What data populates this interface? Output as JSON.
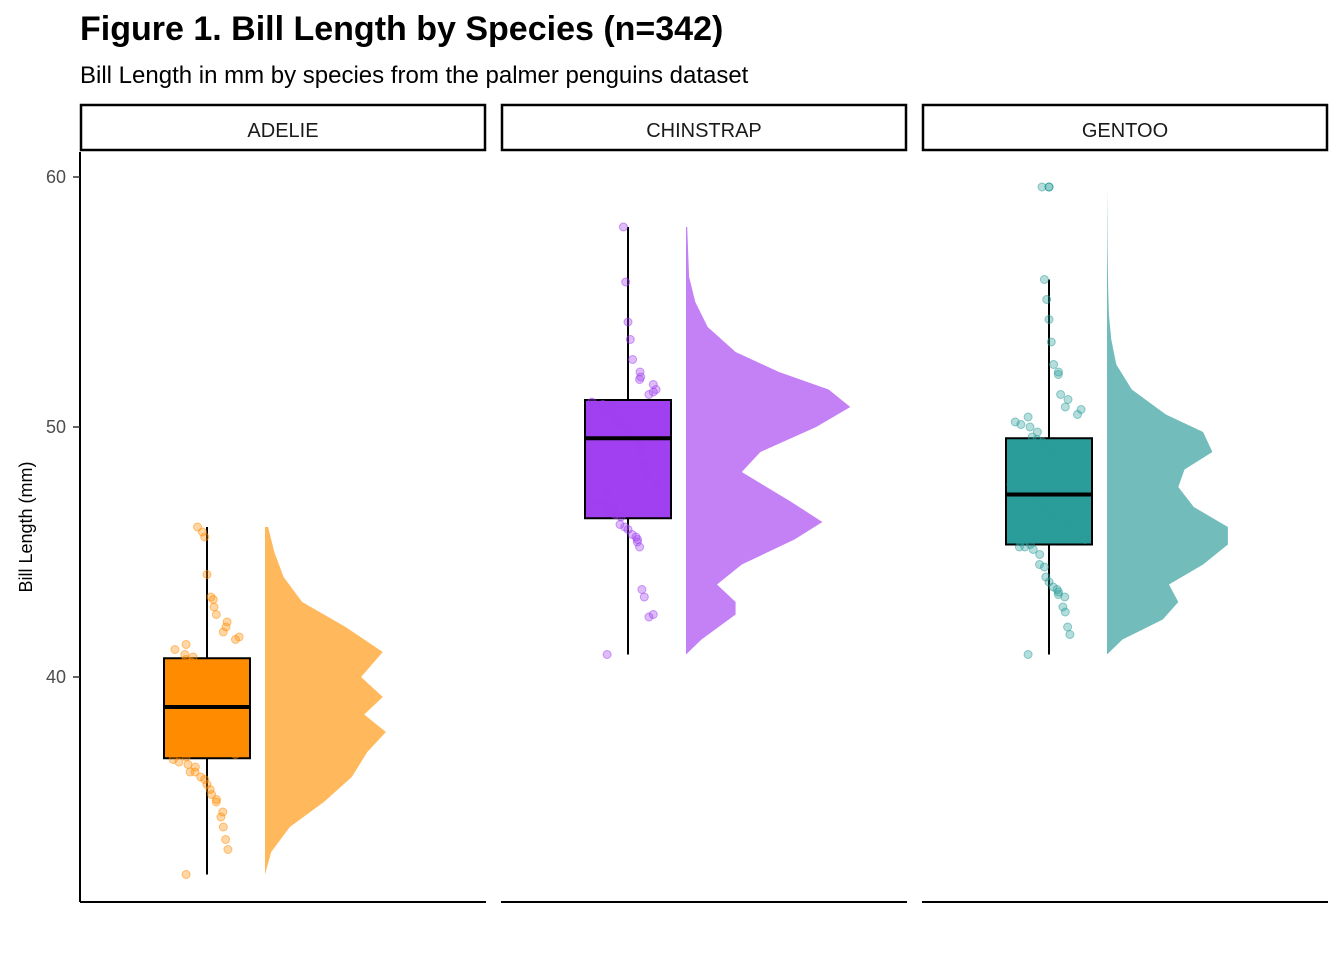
{
  "chart_data": {
    "type": "raincloud",
    "title": "Figure 1. Bill Length by Species (n=342)",
    "subtitle": "Bill Length in mm by species from the palmer penguins dataset",
    "ylabel": "Bill Length (mm)",
    "xlabel": "",
    "ylim": [
      31.0,
      61.0
    ],
    "yticks": [
      40,
      50,
      60
    ],
    "grid": false,
    "legend": "none",
    "panels": [
      {
        "name": "ADELIE",
        "color": "#ff8c00",
        "cloud_color": "#ffb95c",
        "box": {
          "min": 32.1,
          "q1": 36.75,
          "median": 38.8,
          "q3": 40.75,
          "max": 46.0
        },
        "outliers": [],
        "density": {
          "y": [
            32.1,
            33.0,
            34.0,
            35.0,
            36.0,
            37.0,
            37.8,
            38.5,
            39.2,
            40.0,
            41.0,
            42.0,
            43.0,
            44.0,
            45.0,
            46.0
          ],
          "d": [
            0.0,
            0.1,
            0.4,
            0.95,
            1.4,
            1.65,
            1.95,
            1.6,
            1.9,
            1.55,
            1.9,
            1.3,
            0.6,
            0.3,
            0.15,
            0.05
          ]
        },
        "points": [
          32.1,
          33.1,
          33.5,
          34.0,
          34.4,
          34.6,
          35.0,
          35.1,
          35.3,
          35.5,
          35.7,
          35.9,
          36.0,
          36.2,
          36.2,
          36.4,
          36.5,
          36.6,
          36.7,
          36.8,
          36.9,
          37.0,
          37.2,
          37.3,
          37.5,
          37.6,
          37.7,
          37.8,
          37.8,
          37.9,
          38.0,
          38.1,
          38.2,
          38.3,
          38.5,
          38.6,
          38.7,
          38.8,
          38.8,
          38.9,
          39.0,
          39.1,
          39.2,
          39.3,
          39.5,
          39.6,
          39.7,
          39.8,
          40.0,
          40.2,
          40.3,
          40.5,
          40.6,
          40.7,
          40.8,
          40.9,
          41.1,
          41.3,
          41.5,
          41.6,
          41.8,
          42.0,
          42.2,
          42.5,
          42.8,
          43.1,
          43.2,
          44.1,
          45.6,
          45.8,
          46.0
        ]
      },
      {
        "name": "CHINSTRAP",
        "color": "#a040f0",
        "cloud_color": "#c481f5",
        "box": {
          "min": 40.9,
          "q1": 46.35,
          "median": 49.55,
          "q3": 51.08,
          "max": 58.0
        },
        "outliers": [],
        "density": {
          "y": [
            40.9,
            41.5,
            42.5,
            43.0,
            43.7,
            44.5,
            45.5,
            46.2,
            47.0,
            48.2,
            49.0,
            50.0,
            50.8,
            51.5,
            52.2,
            53.0,
            54.0,
            55.0,
            56.0,
            58.0
          ],
          "d": [
            0.0,
            0.25,
            0.8,
            0.8,
            0.5,
            0.9,
            1.75,
            2.2,
            1.7,
            0.9,
            1.2,
            2.1,
            2.65,
            2.3,
            1.5,
            0.8,
            0.35,
            0.15,
            0.05,
            0.02
          ]
        },
        "points": [
          40.9,
          42.4,
          42.5,
          43.2,
          43.5,
          45.2,
          45.4,
          45.5,
          45.6,
          45.7,
          45.9,
          46.0,
          46.1,
          46.4,
          46.5,
          46.6,
          46.8,
          46.9,
          47.0,
          47.5,
          47.6,
          48.1,
          48.5,
          49.0,
          49.2,
          49.3,
          49.5,
          49.6,
          49.7,
          49.8,
          50.0,
          50.1,
          50.2,
          50.3,
          50.5,
          50.6,
          50.8,
          50.9,
          51.0,
          51.3,
          51.4,
          51.5,
          51.7,
          51.9,
          52.0,
          52.2,
          52.7,
          53.5,
          54.2,
          55.8,
          58.0
        ]
      },
      {
        "name": "GENTOO",
        "color": "#2a9d9a",
        "cloud_color": "#72bcbb",
        "box": {
          "min": 40.9,
          "q1": 45.3,
          "median": 47.3,
          "q3": 49.55,
          "max": 55.9
        },
        "outliers": [
          59.6
        ],
        "density": {
          "y": [
            40.9,
            41.5,
            42.3,
            43.0,
            43.7,
            44.5,
            45.3,
            46.0,
            46.8,
            47.6,
            48.3,
            49.0,
            49.8,
            50.5,
            51.5,
            52.5,
            53.5,
            54.5,
            55.5,
            57.0,
            59.6
          ],
          "d": [
            0.0,
            0.25,
            0.9,
            1.15,
            1.0,
            1.55,
            1.95,
            1.95,
            1.4,
            1.15,
            1.25,
            1.7,
            1.55,
            0.95,
            0.4,
            0.15,
            0.07,
            0.03,
            0.02,
            0.01,
            0.0
          ]
        },
        "points": [
          40.9,
          41.7,
          42.0,
          42.6,
          42.8,
          43.2,
          43.3,
          43.4,
          43.5,
          43.6,
          43.8,
          44.0,
          44.4,
          44.5,
          44.9,
          45.1,
          45.2,
          45.2,
          45.3,
          45.4,
          45.5,
          45.7,
          45.8,
          46.0,
          46.1,
          46.2,
          46.4,
          46.5,
          46.5,
          46.7,
          46.8,
          46.9,
          47.0,
          47.2,
          47.3,
          47.4,
          47.5,
          47.6,
          47.7,
          47.8,
          48.1,
          48.2,
          48.4,
          48.5,
          48.7,
          48.8,
          49.0,
          49.1,
          49.2,
          49.3,
          49.4,
          49.5,
          49.6,
          49.8,
          50.0,
          50.1,
          50.2,
          50.4,
          50.5,
          50.7,
          50.8,
          51.1,
          51.3,
          52.1,
          52.2,
          52.5,
          53.4,
          54.3,
          55.1,
          55.9,
          59.6
        ]
      }
    ]
  }
}
